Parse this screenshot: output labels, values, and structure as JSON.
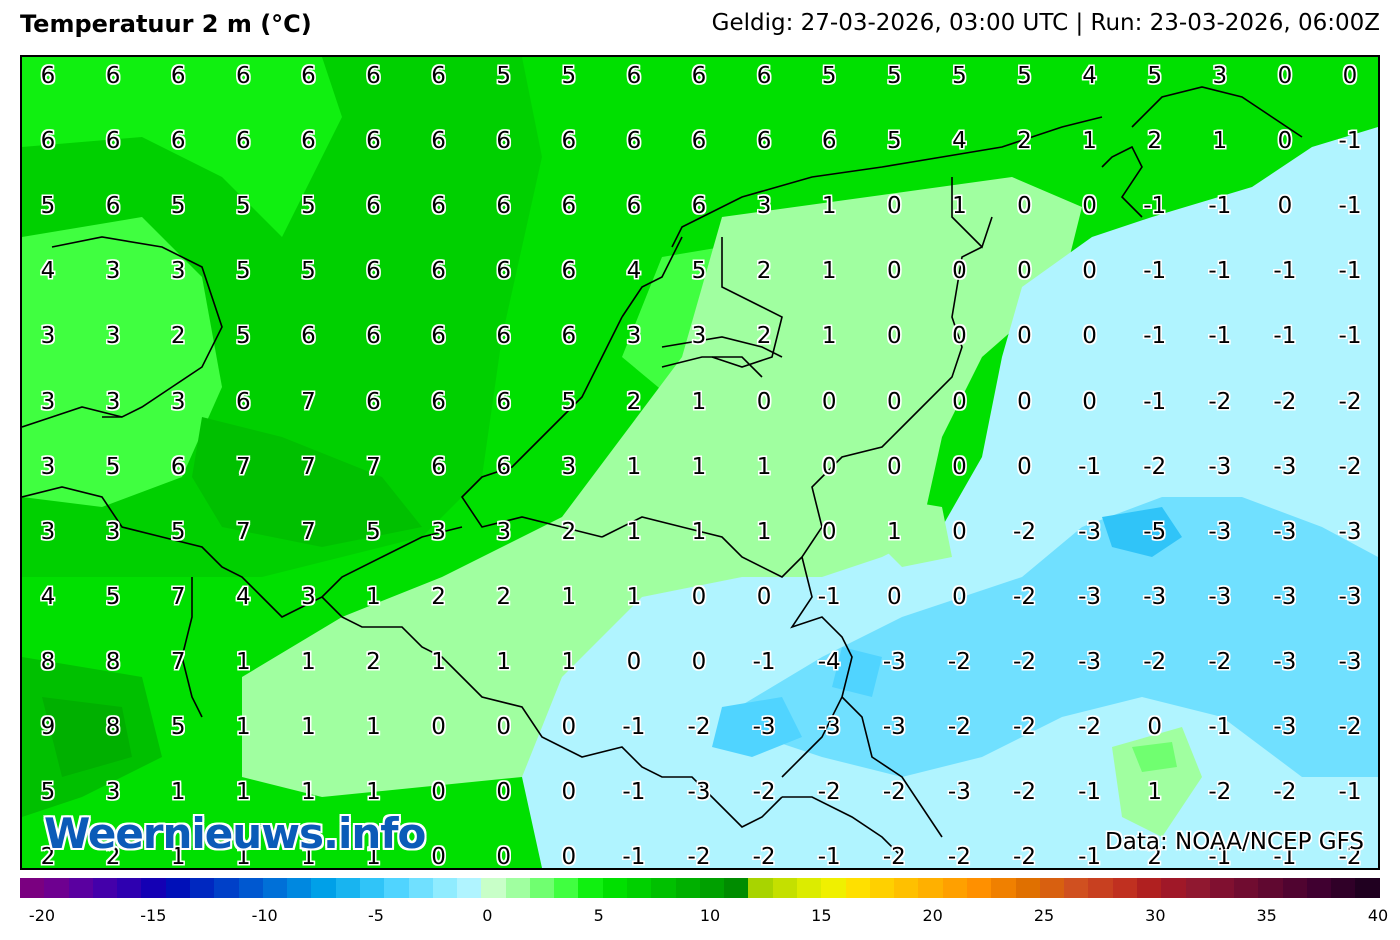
{
  "header": {
    "title": "Temperatuur 2 m (°C)",
    "valid_run": "Geldig: 27-03-2026, 03:00 UTC | Run: 23-03-2026, 06:00Z"
  },
  "map": {
    "grid_values": [
      [
        6,
        6,
        6,
        6,
        6,
        6,
        6,
        5,
        5,
        6,
        6,
        6,
        5,
        5,
        5,
        5,
        4,
        5,
        3,
        0,
        0
      ],
      [
        6,
        6,
        6,
        6,
        6,
        6,
        6,
        6,
        6,
        6,
        6,
        6,
        6,
        5,
        4,
        2,
        1,
        2,
        1,
        0,
        -1
      ],
      [
        5,
        6,
        5,
        5,
        5,
        6,
        6,
        6,
        6,
        6,
        6,
        3,
        1,
        0,
        1,
        0,
        0,
        -1,
        -1,
        0,
        -1
      ],
      [
        4,
        3,
        3,
        5,
        5,
        6,
        6,
        6,
        6,
        4,
        5,
        2,
        1,
        0,
        0,
        0,
        0,
        -1,
        -1,
        -1,
        -1
      ],
      [
        3,
        3,
        2,
        5,
        6,
        6,
        6,
        6,
        6,
        3,
        3,
        2,
        1,
        0,
        0,
        0,
        0,
        -1,
        -1,
        -1,
        -1
      ],
      [
        3,
        3,
        3,
        6,
        7,
        6,
        6,
        6,
        5,
        2,
        1,
        0,
        0,
        0,
        0,
        0,
        0,
        -1,
        -2,
        -2,
        -2
      ],
      [
        3,
        5,
        6,
        7,
        7,
        7,
        6,
        6,
        3,
        1,
        1,
        1,
        0,
        0,
        0,
        0,
        -1,
        -2,
        -3,
        -3,
        -2
      ],
      [
        3,
        3,
        5,
        7,
        7,
        5,
        3,
        3,
        2,
        1,
        1,
        1,
        0,
        1,
        0,
        -2,
        -3,
        -5,
        -3,
        -3,
        -3
      ],
      [
        4,
        5,
        7,
        4,
        3,
        1,
        2,
        2,
        1,
        1,
        0,
        0,
        -1,
        0,
        0,
        -2,
        -3,
        -3,
        -3,
        -3,
        -3
      ],
      [
        8,
        8,
        7,
        1,
        1,
        2,
        1,
        1,
        1,
        0,
        0,
        -1,
        -4,
        -3,
        -2,
        -2,
        -3,
        -2,
        -2,
        -3,
        -3
      ],
      [
        9,
        8,
        5,
        1,
        1,
        1,
        0,
        0,
        0,
        -1,
        -2,
        -3,
        -3,
        -3,
        -2,
        -2,
        -2,
        0,
        -1,
        -3,
        -2
      ],
      [
        5,
        3,
        1,
        1,
        1,
        1,
        0,
        0,
        0,
        -1,
        -3,
        -2,
        -2,
        -2,
        -3,
        -2,
        -1,
        1,
        -2,
        -2,
        -1
      ],
      [
        2,
        2,
        1,
        1,
        1,
        1,
        0,
        0,
        0,
        -1,
        -2,
        -2,
        -1,
        -2,
        -2,
        -2,
        -1,
        2,
        -1,
        -1,
        -2
      ]
    ],
    "logo_text": "Weernieuws.info",
    "source": "Data: NOAA/NCEP GFS"
  },
  "legend": {
    "tick_labels": [
      "-20",
      "-15",
      "-10",
      "-5",
      "0",
      "5",
      "10",
      "15",
      "20",
      "25",
      "30",
      "35",
      "40"
    ],
    "colors": [
      "#7a0080",
      "#6e0090",
      "#5a00a0",
      "#4400aa",
      "#2e00b0",
      "#1400b4",
      "#0010b8",
      "#0028c0",
      "#0040c8",
      "#0058d0",
      "#0070d8",
      "#0088e0",
      "#00a0e8",
      "#18b4f0",
      "#30c4f8",
      "#50d4ff",
      "#70e0ff",
      "#90ecff",
      "#b0f4ff",
      "#c8ffc8",
      "#a0ffa0",
      "#70ff70",
      "#40ff40",
      "#10f010",
      "#00e000",
      "#00d000",
      "#00c000",
      "#00b000",
      "#00a000",
      "#008c00",
      "#a8d400",
      "#c4e000",
      "#dcec00",
      "#f0f000",
      "#ffe000",
      "#ffd000",
      "#ffc000",
      "#ffb000",
      "#ffa000",
      "#ff9000",
      "#f08000",
      "#e07000",
      "#d86010",
      "#d05020",
      "#c84020",
      "#c03020",
      "#b02020",
      "#a01828",
      "#901830",
      "#801030",
      "#700c30",
      "#600830",
      "#500430",
      "#400030",
      "#300028",
      "#200020"
    ]
  }
}
